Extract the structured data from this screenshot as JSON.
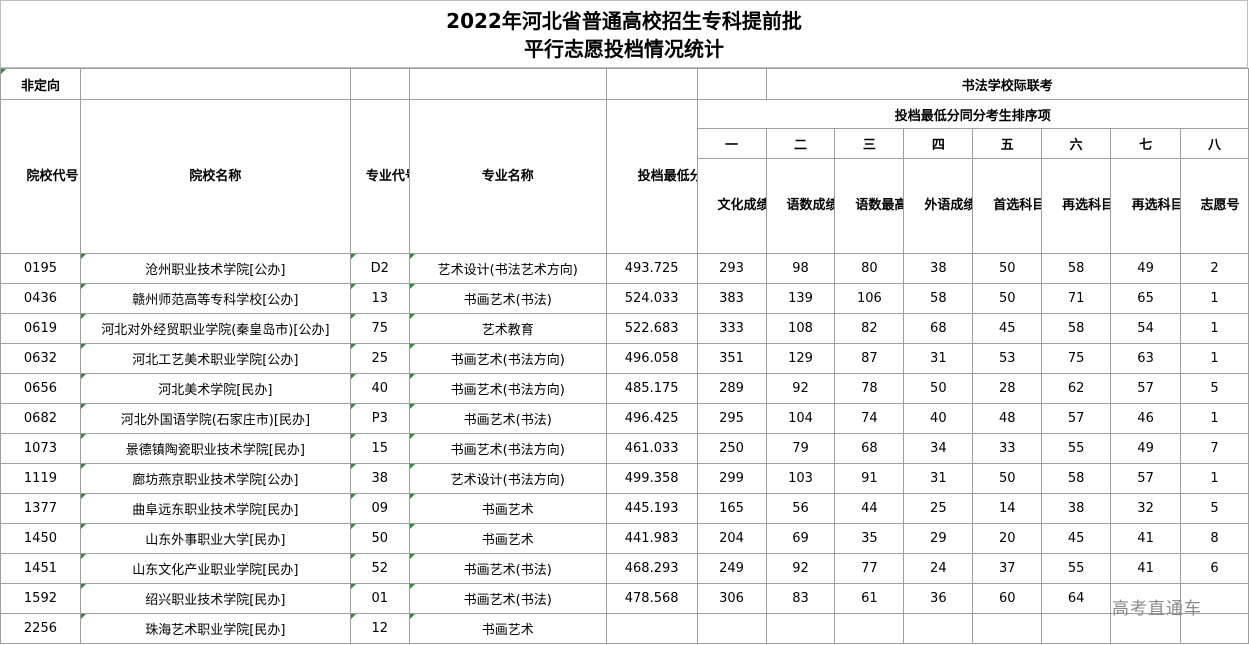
{
  "title": {
    "line1": "2022年河北省普通高校招生专科提前批",
    "line2": "平行志愿投档情况统计"
  },
  "top_row": {
    "left_label": "非定向",
    "right_label": "书法学校际联考"
  },
  "headers": {
    "school_code": "院校代号",
    "school_name": "院校名称",
    "major_code": "专业代号",
    "major_name": "专业名称",
    "min_score": "投档最低分",
    "sort_group": "投档最低分同分考生排序项",
    "order": [
      "一",
      "二",
      "三",
      "四",
      "五",
      "六",
      "七",
      "八"
    ],
    "order_labels": [
      "文化成绩",
      "语数成绩",
      "语数最高成绩",
      "外语成绩",
      "首选科目成绩",
      "再选科目最高成绩",
      "再选科目次高成绩",
      "志愿号"
    ]
  },
  "rows": [
    {
      "code": "0195",
      "name": "沧州职业技术学院[公办]",
      "major_code": "D2",
      "major": "艺术设计(书法艺术方向)",
      "score": "493.725",
      "v1": "293",
      "v2": "98",
      "v3": "80",
      "v4": "38",
      "v5": "50",
      "v6": "58",
      "v7": "49",
      "v8": "2"
    },
    {
      "code": "0436",
      "name": "赣州师范高等专科学校[公办]",
      "major_code": "13",
      "major": "书画艺术(书法)",
      "score": "524.033",
      "v1": "383",
      "v2": "139",
      "v3": "106",
      "v4": "58",
      "v5": "50",
      "v6": "71",
      "v7": "65",
      "v8": "1"
    },
    {
      "code": "0619",
      "name": "河北对外经贸职业学院(秦皇岛市)[公办]",
      "major_code": "75",
      "major": "艺术教育",
      "score": "522.683",
      "v1": "333",
      "v2": "108",
      "v3": "82",
      "v4": "68",
      "v5": "45",
      "v6": "58",
      "v7": "54",
      "v8": "1"
    },
    {
      "code": "0632",
      "name": "河北工艺美术职业学院[公办]",
      "major_code": "25",
      "major": "书画艺术(书法方向)",
      "score": "496.058",
      "v1": "351",
      "v2": "129",
      "v3": "87",
      "v4": "31",
      "v5": "53",
      "v6": "75",
      "v7": "63",
      "v8": "1"
    },
    {
      "code": "0656",
      "name": "河北美术学院[民办]",
      "major_code": "40",
      "major": "书画艺术(书法方向)",
      "score": "485.175",
      "v1": "289",
      "v2": "92",
      "v3": "78",
      "v4": "50",
      "v5": "28",
      "v6": "62",
      "v7": "57",
      "v8": "5"
    },
    {
      "code": "0682",
      "name": "河北外国语学院(石家庄市)[民办]",
      "major_code": "P3",
      "major": "书画艺术(书法)",
      "score": "496.425",
      "v1": "295",
      "v2": "104",
      "v3": "74",
      "v4": "40",
      "v5": "48",
      "v6": "57",
      "v7": "46",
      "v8": "1"
    },
    {
      "code": "1073",
      "name": "景德镇陶瓷职业技术学院[民办]",
      "major_code": "15",
      "major": "书画艺术(书法方向)",
      "score": "461.033",
      "v1": "250",
      "v2": "79",
      "v3": "68",
      "v4": "34",
      "v5": "33",
      "v6": "55",
      "v7": "49",
      "v8": "7"
    },
    {
      "code": "1119",
      "name": "廊坊燕京职业技术学院[公办]",
      "major_code": "38",
      "major": "艺术设计(书法方向)",
      "score": "499.358",
      "v1": "299",
      "v2": "103",
      "v3": "91",
      "v4": "31",
      "v5": "50",
      "v6": "58",
      "v7": "57",
      "v8": "1"
    },
    {
      "code": "1377",
      "name": "曲阜远东职业技术学院[民办]",
      "major_code": "09",
      "major": "书画艺术",
      "score": "445.193",
      "v1": "165",
      "v2": "56",
      "v3": "44",
      "v4": "25",
      "v5": "14",
      "v6": "38",
      "v7": "32",
      "v8": "5"
    },
    {
      "code": "1450",
      "name": "山东外事职业大学[民办]",
      "major_code": "50",
      "major": "书画艺术",
      "score": "441.983",
      "v1": "204",
      "v2": "69",
      "v3": "35",
      "v4": "29",
      "v5": "20",
      "v6": "45",
      "v7": "41",
      "v8": "8"
    },
    {
      "code": "1451",
      "name": "山东文化产业职业学院[民办]",
      "major_code": "52",
      "major": "书画艺术(书法)",
      "score": "468.293",
      "v1": "249",
      "v2": "92",
      "v3": "77",
      "v4": "24",
      "v5": "37",
      "v6": "55",
      "v7": "41",
      "v8": "6"
    },
    {
      "code": "1592",
      "name": "绍兴职业技术学院[民办]",
      "major_code": "01",
      "major": "书画艺术(书法)",
      "score": "478.568",
      "v1": "306",
      "v2": "83",
      "v3": "61",
      "v4": "36",
      "v5": "60",
      "v6": "64",
      "v7": "",
      "v8": ""
    },
    {
      "code": "2256",
      "name": "珠海艺术职业学院[民办]",
      "major_code": "12",
      "major": "书画艺术",
      "score": "",
      "v1": "",
      "v2": "",
      "v3": "",
      "v4": "",
      "v5": "",
      "v6": "",
      "v7": "",
      "v8": ""
    }
  ],
  "watermark": "高考直通车"
}
